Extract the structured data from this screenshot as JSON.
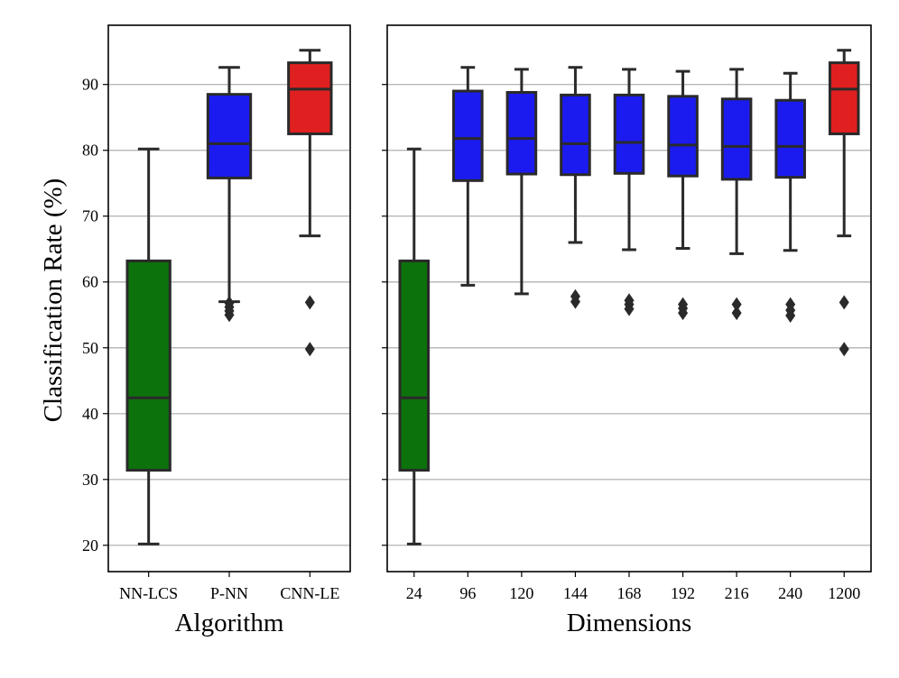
{
  "chart_data": [
    {
      "type": "box",
      "xlabel": "Algorithm",
      "ylabel": "Classification Rate (%)",
      "ylim": [
        16,
        99
      ],
      "yticks": [
        20,
        30,
        40,
        50,
        60,
        70,
        80,
        90
      ],
      "grid": "horizontal",
      "categories": [
        "NN-LCS",
        "P-NN",
        "CNN-LE"
      ],
      "boxes": [
        {
          "category": "NN-LCS",
          "whisker_low": 20.2,
          "q1": 31.4,
          "median": 42.4,
          "q3": 63.2,
          "whisker_high": 80.2,
          "outliers": [],
          "color": "#0c720c"
        },
        {
          "category": "P-NN",
          "whisker_low": 57.0,
          "q1": 75.8,
          "median": 81.0,
          "q3": 88.5,
          "whisker_high": 92.6,
          "outliers": [
            55.0,
            55.6,
            56.2,
            56.8
          ],
          "color": "#1b1bf0"
        },
        {
          "category": "CNN-LE",
          "whisker_low": 67.0,
          "q1": 82.5,
          "median": 89.3,
          "q3": 93.3,
          "whisker_high": 95.2,
          "outliers": [
            56.9,
            49.8
          ],
          "color": "#e02020"
        }
      ]
    },
    {
      "type": "box",
      "xlabel": "Dimensions",
      "ylabel": "",
      "ylim": [
        16,
        99
      ],
      "yticks": [
        20,
        30,
        40,
        50,
        60,
        70,
        80,
        90
      ],
      "grid": "horizontal",
      "categories": [
        "24",
        "96",
        "120",
        "144",
        "168",
        "192",
        "216",
        "240",
        "1200"
      ],
      "boxes": [
        {
          "category": "24",
          "whisker_low": 20.2,
          "q1": 31.4,
          "median": 42.4,
          "q3": 63.2,
          "whisker_high": 80.2,
          "outliers": [],
          "color": "#0c720c"
        },
        {
          "category": "96",
          "whisker_low": 59.5,
          "q1": 75.4,
          "median": 81.8,
          "q3": 89.0,
          "whisker_high": 92.6,
          "outliers": [],
          "color": "#1b1bf0"
        },
        {
          "category": "120",
          "whisker_low": 58.2,
          "q1": 76.4,
          "median": 81.8,
          "q3": 88.8,
          "whisker_high": 92.3,
          "outliers": [],
          "color": "#1b1bf0"
        },
        {
          "category": "144",
          "whisker_low": 66.0,
          "q1": 76.3,
          "median": 81.0,
          "q3": 88.4,
          "whisker_high": 92.6,
          "outliers": [
            57.0,
            57.8
          ],
          "color": "#1b1bf0"
        },
        {
          "category": "168",
          "whisker_low": 64.9,
          "q1": 76.5,
          "median": 81.2,
          "q3": 88.4,
          "whisker_high": 92.3,
          "outliers": [
            55.9,
            56.6,
            57.2
          ],
          "color": "#1b1bf0"
        },
        {
          "category": "192",
          "whisker_low": 65.1,
          "q1": 76.1,
          "median": 80.8,
          "q3": 88.2,
          "whisker_high": 92.0,
          "outliers": [
            55.3,
            56.0,
            56.6
          ],
          "color": "#1b1bf0"
        },
        {
          "category": "216",
          "whisker_low": 64.3,
          "q1": 75.6,
          "median": 80.6,
          "q3": 87.8,
          "whisker_high": 92.3,
          "outliers": [
            55.3,
            56.6
          ],
          "color": "#1b1bf0"
        },
        {
          "category": "240",
          "whisker_low": 64.8,
          "q1": 75.9,
          "median": 80.6,
          "q3": 87.6,
          "whisker_high": 91.7,
          "outliers": [
            54.9,
            55.7,
            56.6
          ],
          "color": "#1b1bf0"
        },
        {
          "category": "1200",
          "whisker_low": 67.0,
          "q1": 82.5,
          "median": 89.3,
          "q3": 93.3,
          "whisker_high": 95.2,
          "outliers": [
            56.9,
            49.8
          ],
          "color": "#e02020"
        }
      ]
    }
  ]
}
